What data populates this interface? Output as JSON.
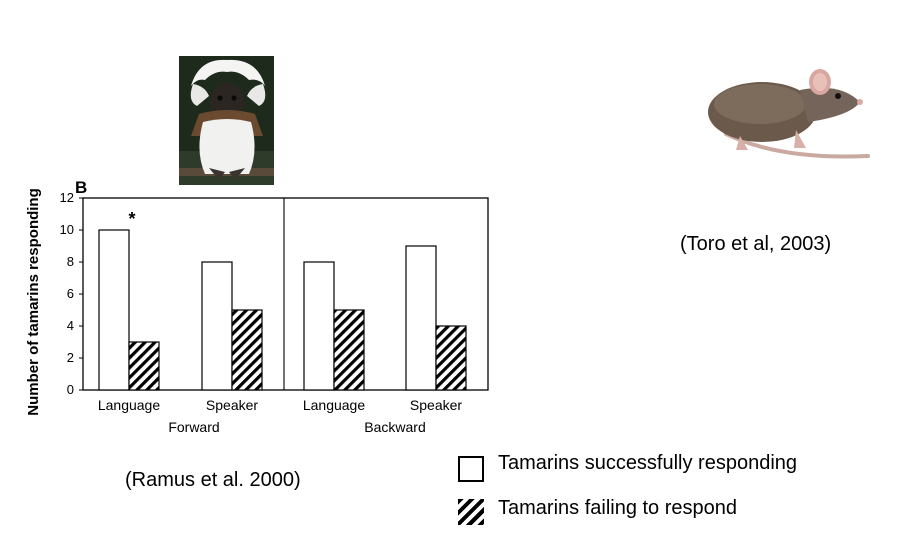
{
  "chart_data": {
    "type": "bar",
    "panel_label": "B",
    "ylabel": "Number of tamarins responding",
    "ylim": [
      0,
      12
    ],
    "yticks": [
      0,
      2,
      4,
      6,
      8,
      10,
      12
    ],
    "groups": [
      {
        "name": "Forward",
        "categories": [
          "Language",
          "Speaker"
        ]
      },
      {
        "name": "Backward",
        "categories": [
          "Language",
          "Speaker"
        ]
      }
    ],
    "series": [
      {
        "name": "Tamarins successfully responding",
        "values": [
          10,
          8,
          8,
          9
        ],
        "pattern": "white"
      },
      {
        "name": "Tamarins failing to respond",
        "values": [
          3,
          5,
          5,
          4
        ],
        "pattern": "hatched"
      }
    ],
    "annotations": [
      {
        "text": "*",
        "category_index": 0,
        "series_index": 0
      }
    ],
    "legend_position": "bottom-right"
  },
  "captions": {
    "toro": "(Toro et al, 2003)",
    "ramus": "(Ramus et al. 2000)"
  },
  "legend": {
    "success": "Tamarins successfully responding",
    "fail": "Tamarins failing to respond"
  },
  "images": {
    "tamarin": "tamarin-photo",
    "rat": "rat-photo"
  }
}
